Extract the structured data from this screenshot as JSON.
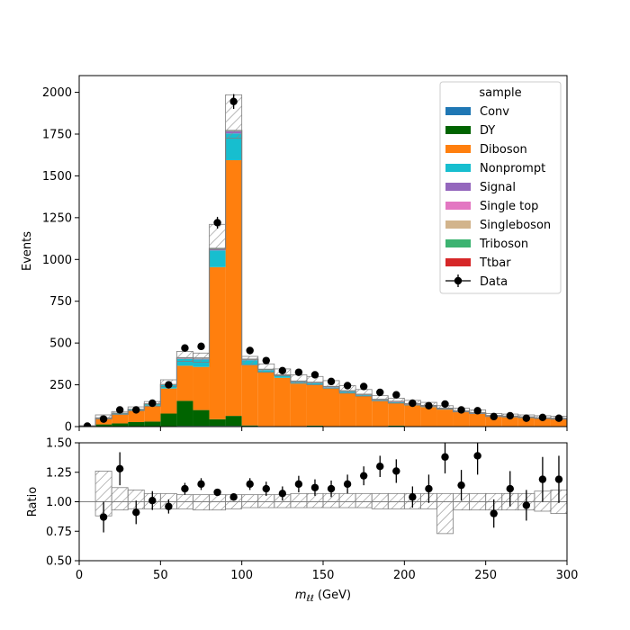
{
  "chart_data": [
    {
      "type": "histogram-stack",
      "panel": "main",
      "ylabel": "Events",
      "xlim": [
        0,
        300
      ],
      "ylim": [
        0,
        2100
      ],
      "yticks": [
        0,
        250,
        500,
        750,
        1000,
        1250,
        1500,
        1750,
        2000
      ],
      "bin_edges": [
        0,
        10,
        20,
        30,
        40,
        50,
        60,
        70,
        80,
        90,
        100,
        110,
        120,
        130,
        140,
        150,
        160,
        170,
        180,
        190,
        200,
        210,
        220,
        230,
        240,
        250,
        260,
        270,
        280,
        290,
        300
      ],
      "legend": {
        "title": "sample",
        "placement": "upper-right",
        "entries": [
          "Conv",
          "DY",
          "Diboson",
          "Nonprompt",
          "Signal",
          "Single top",
          "Singleboson",
          "Triboson",
          "Ttbar",
          "Data"
        ]
      },
      "series": [
        {
          "name": "Conv",
          "color": "#1f77b4",
          "values": [
            0,
            1,
            1,
            2,
            2,
            3,
            4,
            4,
            4,
            4,
            2,
            1,
            1,
            1,
            1,
            1,
            1,
            1,
            1,
            1,
            1,
            1,
            1,
            0,
            0,
            0,
            0,
            0,
            0,
            0
          ]
        },
        {
          "name": "DY",
          "color": "#006400",
          "values": [
            2,
            12,
            18,
            25,
            28,
            75,
            150,
            95,
            40,
            60,
            5,
            2,
            1,
            1,
            5,
            1,
            1,
            1,
            1,
            5,
            1,
            1,
            1,
            1,
            1,
            1,
            1,
            1,
            1,
            1
          ]
        },
        {
          "name": "Diboson",
          "color": "#ff7f0e",
          "values": [
            2,
            35,
            55,
            68,
            95,
            150,
            210,
            258,
            910,
            1530,
            360,
            320,
            290,
            255,
            245,
            225,
            200,
            180,
            150,
            135,
            125,
            115,
            100,
            85,
            75,
            58,
            55,
            50,
            45,
            42
          ]
        },
        {
          "name": "Nonprompt",
          "color": "#17becf",
          "values": [
            0,
            2,
            4,
            6,
            8,
            20,
            40,
            45,
            100,
            160,
            30,
            15,
            12,
            10,
            9,
            8,
            7,
            6,
            6,
            5,
            5,
            4,
            4,
            3,
            3,
            3,
            3,
            3,
            2,
            2
          ]
        },
        {
          "name": "Signal",
          "color": "#9467bd",
          "values": [
            0,
            0,
            0,
            0,
            0,
            1,
            2,
            3,
            6,
            12,
            2,
            1,
            1,
            1,
            1,
            1,
            1,
            1,
            1,
            1,
            1,
            1,
            1,
            1,
            1,
            1,
            1,
            1,
            1,
            1
          ]
        },
        {
          "name": "Single top",
          "color": "#e377c2",
          "values": [
            0,
            0,
            0,
            0,
            0,
            0,
            1,
            1,
            1,
            1,
            1,
            1,
            1,
            1,
            1,
            1,
            1,
            1,
            1,
            1,
            1,
            1,
            1,
            1,
            1,
            1,
            1,
            1,
            1,
            1
          ]
        },
        {
          "name": "Singleboson",
          "color": "#d2b48c",
          "values": [
            0,
            0,
            0,
            0,
            0,
            0,
            1,
            1,
            1,
            1,
            0,
            0,
            0,
            0,
            0,
            0,
            0,
            0,
            0,
            0,
            0,
            0,
            0,
            0,
            0,
            0,
            0,
            0,
            0,
            0
          ]
        },
        {
          "name": "Triboson",
          "color": "#3cb371",
          "values": [
            0,
            1,
            1,
            1,
            2,
            2,
            3,
            3,
            3,
            3,
            2,
            2,
            2,
            2,
            2,
            2,
            2,
            2,
            2,
            2,
            2,
            2,
            1,
            1,
            1,
            1,
            1,
            1,
            1,
            1
          ]
        },
        {
          "name": "Ttbar",
          "color": "#d62728",
          "values": [
            0,
            1,
            1,
            1,
            1,
            1,
            1,
            1,
            1,
            1,
            1,
            1,
            1,
            1,
            1,
            1,
            1,
            1,
            1,
            1,
            1,
            1,
            1,
            1,
            1,
            1,
            1,
            1,
            1,
            1
          ]
        }
      ],
      "uncertainty_up": [
        5,
        70,
        90,
        118,
        150,
        280,
        450,
        440,
        1210,
        1985,
        420,
        375,
        345,
        310,
        300,
        275,
        245,
        222,
        185,
        170,
        157,
        145,
        125,
        110,
        100,
        78,
        75,
        70,
        65,
        62
      ],
      "uncertainty_down": [
        3,
        45,
        72,
        95,
        122,
        240,
        390,
        385,
        1060,
        1725,
        370,
        325,
        305,
        260,
        250,
        230,
        200,
        182,
        155,
        140,
        130,
        120,
        105,
        88,
        78,
        60,
        58,
        54,
        48,
        44
      ],
      "data": {
        "name": "Data",
        "x": [
          5,
          15,
          25,
          35,
          45,
          55,
          65,
          75,
          85,
          95,
          105,
          115,
          125,
          135,
          145,
          155,
          165,
          175,
          185,
          195,
          205,
          215,
          225,
          235,
          245,
          255,
          265,
          275,
          285,
          295
        ],
        "y": [
          3,
          45,
          100,
          100,
          140,
          250,
          470,
          480,
          1220,
          1945,
          455,
          395,
          335,
          325,
          310,
          270,
          245,
          240,
          205,
          190,
          140,
          125,
          135,
          100,
          95,
          60,
          65,
          50,
          55,
          50
        ]
      }
    },
    {
      "type": "ratio",
      "panel": "ratio",
      "xlabel": "m_ℓℓ (GeV)",
      "ylabel": "Ratio",
      "xlim": [
        0,
        300
      ],
      "ylim": [
        0.5,
        1.5
      ],
      "xticks": [
        0,
        50,
        100,
        150,
        200,
        250,
        300
      ],
      "yticks": [
        0.5,
        0.75,
        1.0,
        1.25,
        1.5
      ],
      "reference_line": 1.0,
      "band_up": [
        1.0,
        1.26,
        1.12,
        1.1,
        1.07,
        1.07,
        1.06,
        1.06,
        1.06,
        1.06,
        1.06,
        1.06,
        1.06,
        1.07,
        1.07,
        1.07,
        1.07,
        1.07,
        1.07,
        1.07,
        1.07,
        1.07,
        1.07,
        1.07,
        1.07,
        1.07,
        1.07,
        1.07,
        1.09,
        1.1
      ],
      "band_down": [
        1.0,
        0.88,
        0.93,
        0.94,
        0.94,
        0.94,
        0.94,
        0.93,
        0.93,
        0.94,
        0.95,
        0.95,
        0.95,
        0.95,
        0.95,
        0.95,
        0.95,
        0.95,
        0.94,
        0.94,
        0.94,
        0.94,
        0.73,
        0.93,
        0.93,
        0.93,
        0.93,
        0.93,
        0.92,
        0.9
      ],
      "points": {
        "x": [
          15,
          25,
          35,
          45,
          55,
          65,
          75,
          85,
          95,
          105,
          115,
          125,
          135,
          145,
          155,
          165,
          175,
          185,
          195,
          205,
          215,
          225,
          235,
          245,
          255,
          265,
          275,
          285,
          295
        ],
        "y": [
          0.87,
          1.28,
          0.91,
          1.01,
          0.96,
          1.11,
          1.15,
          1.08,
          1.04,
          1.15,
          1.11,
          1.07,
          1.15,
          1.12,
          1.11,
          1.15,
          1.22,
          1.3,
          1.26,
          1.04,
          1.11,
          1.38,
          1.14,
          1.39,
          0.9,
          1.11,
          0.97,
          1.19,
          1.19
        ],
        "err": [
          0.13,
          0.14,
          0.1,
          0.08,
          0.06,
          0.05,
          0.05,
          0.03,
          0.03,
          0.05,
          0.06,
          0.06,
          0.07,
          0.07,
          0.07,
          0.08,
          0.08,
          0.09,
          0.1,
          0.09,
          0.12,
          0.14,
          0.13,
          0.16,
          0.12,
          0.15,
          0.13,
          0.19,
          0.2
        ]
      }
    }
  ]
}
